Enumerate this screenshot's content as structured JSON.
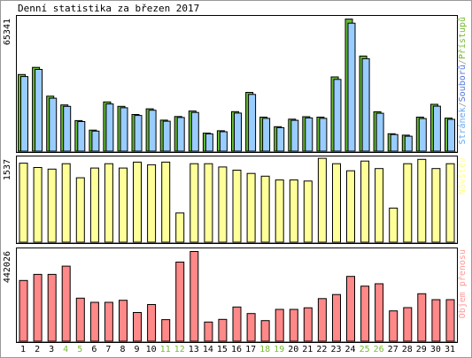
{
  "chart_data": {
    "type": "bar",
    "title": "Denní statistika za březen 2017",
    "categories": [
      "1",
      "2",
      "3",
      "4",
      "5",
      "6",
      "7",
      "8",
      "9",
      "10",
      "11",
      "12",
      "13",
      "14",
      "15",
      "16",
      "17",
      "18",
      "19",
      "20",
      "21",
      "22",
      "23",
      "24",
      "25",
      "26",
      "27",
      "28",
      "29",
      "30",
      "31"
    ],
    "weekend_days": [
      "4",
      "5",
      "11",
      "12",
      "18",
      "19",
      "25",
      "26"
    ],
    "panels": [
      {
        "id": "requests",
        "ymax_label": "65341",
        "ymax": 65341,
        "legend": [
          {
            "text": "Stránek",
            "color": "#66aaee"
          },
          {
            "text": "/",
            "color": "#999999"
          },
          {
            "text": "Souborů",
            "color": "#5577dd"
          },
          {
            "text": "/",
            "color": "#999999"
          },
          {
            "text": "Přístupů",
            "color": "#77bb33"
          }
        ],
        "series": [
          {
            "name": "Přístupů",
            "color": "#66bb33",
            "values": [
              38000,
              41500,
              27300,
              23000,
              15300,
              10600,
              24500,
              22300,
              18300,
              21100,
              15500,
              17300,
              20000,
              9100,
              10300,
              19700,
              29200,
              17000,
              12300,
              16000,
              17200,
              17000,
              36800,
              65300,
              47100,
              19600,
              8800,
              8100,
              17000,
              23300,
              16500
            ]
          },
          {
            "name": "Souborů",
            "color": "#99ccff",
            "values": [
              37000,
              40500,
              26300,
              22300,
              14800,
              10100,
              23500,
              21600,
              17800,
              20400,
              15000,
              16800,
              19300,
              8700,
              9800,
              19000,
              28200,
              16400,
              11800,
              15400,
              16600,
              16400,
              35600,
              63300,
              45800,
              18900,
              8400,
              7600,
              16300,
              22400,
              15900
            ]
          }
        ]
      },
      {
        "id": "visits",
        "ymax_label": "1537",
        "ymax": 1537,
        "legend": [
          {
            "text": "Návštěv",
            "color": "#ffff88"
          }
        ],
        "series": [
          {
            "name": "Návštěv",
            "color": "#ffff99",
            "values": [
              1470,
              1390,
              1360,
              1460,
              1200,
              1380,
              1460,
              1380,
              1490,
              1440,
              1490,
              550,
              1460,
              1460,
              1400,
              1340,
              1280,
              1230,
              1160,
              1160,
              1140,
              1560,
              1460,
              1330,
              1510,
              1370,
              640,
              1460,
              1540,
              1370,
              1460
            ]
          }
        ]
      },
      {
        "id": "traffic",
        "ymax_label": "442026",
        "ymax": 442026,
        "legend": [
          {
            "text": "Objem přenosu",
            "color": "#ff9999"
          }
        ],
        "series": [
          {
            "name": "Objem přenosu",
            "color": "#ff8888",
            "values": [
              300000,
              330000,
              330000,
              370000,
              213000,
              193000,
              193000,
              203000,
              143000,
              182000,
              108000,
              390000,
              442026,
              96000,
              109000,
              170000,
              138000,
              103000,
              158000,
              158000,
              166000,
              211000,
              231000,
              320000,
              272000,
              284000,
              151000,
              167000,
              235000,
              206000,
              206000
            ]
          }
        ]
      }
    ]
  }
}
